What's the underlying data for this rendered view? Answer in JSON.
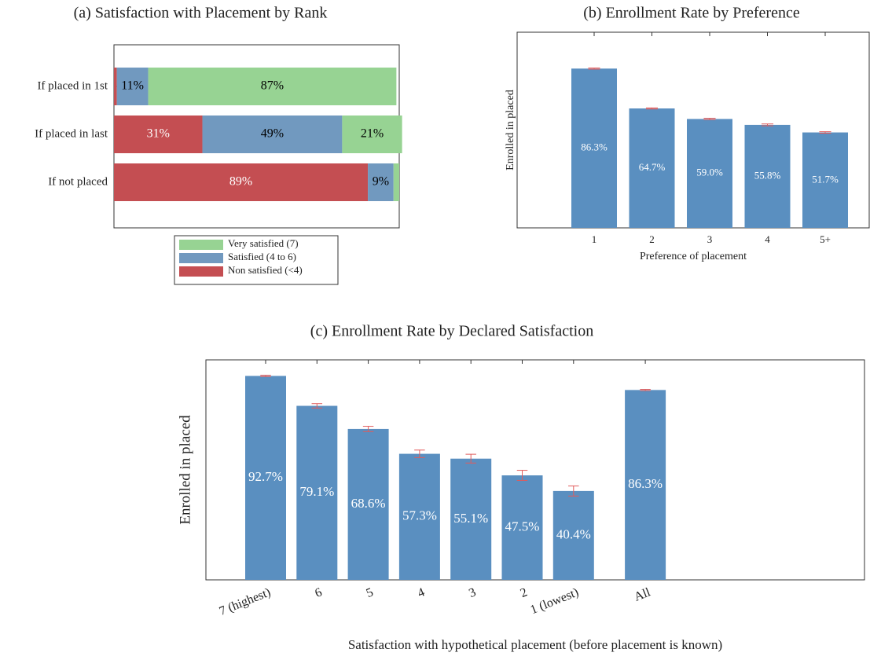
{
  "chart_data": [
    {
      "type": "barh",
      "title": "(a) Satisfaction with Placement by Rank",
      "categories": [
        "If placed in 1st",
        "If placed in last",
        "If not placed"
      ],
      "series": [
        {
          "name": "Non satisfied (<4)",
          "color": "#c44e52",
          "label_color": "#ffffff",
          "values": [
            1,
            31,
            89
          ],
          "value_labels": [
            null,
            "31%",
            "89%"
          ]
        },
        {
          "name": "Satisfied (4 to 6)",
          "color": "#7199bf",
          "label_color": "#000000",
          "values": [
            11,
            49,
            9
          ],
          "value_labels": [
            "11%",
            "49%",
            "9%"
          ]
        },
        {
          "name": "Very satisfied (7)",
          "color": "#97d393",
          "label_color": "#000000",
          "values": [
            87,
            21,
            2
          ],
          "value_labels": [
            "87%",
            "21%",
            null
          ]
        }
      ],
      "xlim": [
        0,
        100
      ],
      "legend": "below"
    },
    {
      "type": "bar",
      "title": "(b) Enrollment Rate by Preference",
      "xlabel": "Preference of placement",
      "ylabel": "Enrolled in placed",
      "categories": [
        "1",
        "2",
        "3",
        "4",
        "5+"
      ],
      "values": [
        86.3,
        64.7,
        59.0,
        55.8,
        51.7
      ],
      "value_labels": [
        "86.3%",
        "64.7%",
        "59.0%",
        "55.8%",
        "51.7%"
      ],
      "errors": [
        0.3,
        0.3,
        0.4,
        0.5,
        0.4
      ],
      "color": "#5a8fc0",
      "error_color": "#e05c5c",
      "ylim": [
        0,
        106
      ]
    },
    {
      "type": "bar",
      "title": "(c) Enrollment Rate by Declared Satisfaction",
      "xlabel": "Satisfaction with hypothetical placement (before placement is known)",
      "ylabel": "Enrolled in placed",
      "categories": [
        "7 (highest)",
        "6",
        "5",
        "4",
        "3",
        "2",
        "1 (lowest)",
        "All"
      ],
      "values": [
        92.7,
        79.1,
        68.6,
        57.3,
        55.1,
        47.5,
        40.4,
        86.3
      ],
      "value_labels": [
        "92.7%",
        "79.1%",
        "68.6%",
        "57.3%",
        "55.1%",
        "47.5%",
        "40.4%",
        "86.3%"
      ],
      "errors": [
        0.3,
        1.0,
        1.2,
        1.7,
        2.0,
        2.3,
        2.3,
        0.3
      ],
      "color": "#5a8fc0",
      "error_color": "#e05c5c",
      "ylim": [
        0,
        100
      ]
    }
  ]
}
